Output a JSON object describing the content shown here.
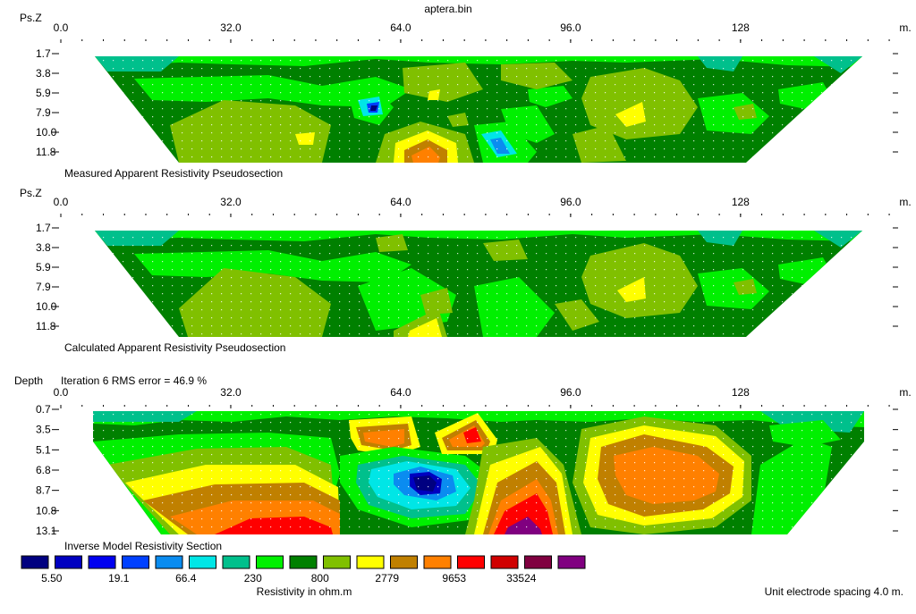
{
  "file_title": "aptera.bin",
  "x_unit": "m.",
  "distance_ticks": [
    0.0,
    32.0,
    64.0,
    96.0,
    128
  ],
  "distance_tick_labels": [
    "0.0",
    "32.0",
    "64.0",
    "96.0",
    "128"
  ],
  "x_range": [
    0,
    157
  ],
  "survey": {
    "start": 6.5,
    "end": 150
  },
  "panels": [
    {
      "id": "measured",
      "axis_label": "Ps.Z",
      "title": "Measured Apparent Resistivity Pseudosection",
      "levels": [
        "1.7",
        "3.8",
        "5.9",
        "7.9",
        "10.0",
        "11.8"
      ],
      "shape": "trapezoid"
    },
    {
      "id": "calculated",
      "axis_label": "Ps.Z",
      "title": "Calculated Apparent Resistivity Pseudosection",
      "levels": [
        "1.7",
        "3.8",
        "5.9",
        "7.9",
        "10.0",
        "11.8"
      ],
      "shape": "trapezoid"
    },
    {
      "id": "inverse",
      "axis_label": "Depth",
      "subtitle": "Iteration 6 RMS error = 46.9 %",
      "title": "Inverse Model Resistivity Section",
      "levels": [
        "0.7",
        "3.5",
        "5.1",
        "6.8",
        "8.7",
        "10.8",
        "13.1"
      ],
      "shape": "model"
    }
  ],
  "colorscale": {
    "colors": [
      "#000080",
      "#0000c0",
      "#0000f0",
      "#0040ff",
      "#0a8cf0",
      "#00e6e6",
      "#00c08c",
      "#00f000",
      "#008000",
      "#80c000",
      "#ffff00",
      "#c08000",
      "#ff8000",
      "#ff0000",
      "#d00000",
      "#800040",
      "#800080"
    ],
    "labels": [
      "5.50",
      "19.1",
      "66.4",
      "230",
      "800",
      "2779",
      "9653",
      "33524"
    ],
    "unit_label": "Resistivity in ohm.m"
  },
  "footer": {
    "spacing_note": "Unit electrode spacing 4.0 m."
  }
}
